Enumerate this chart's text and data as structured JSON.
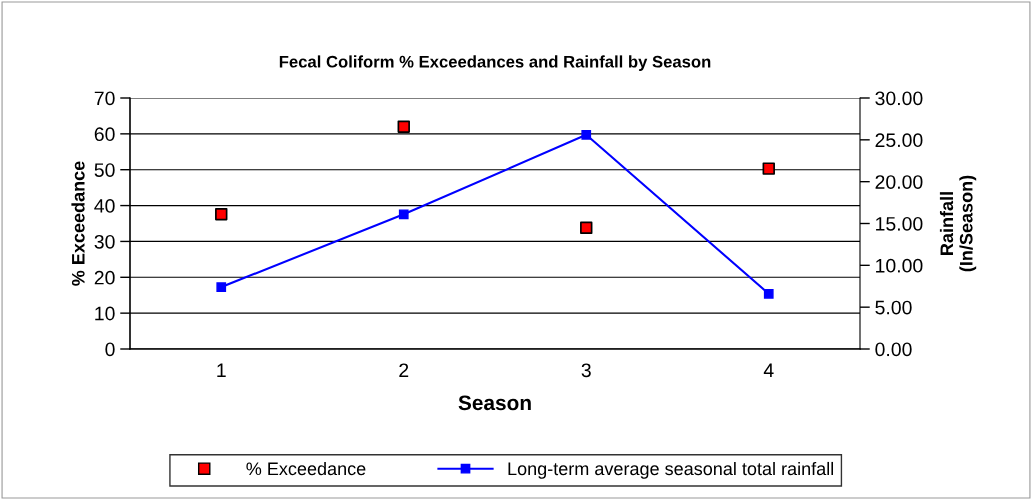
{
  "chart_data": {
    "type": "line",
    "title": "Fecal Coliform % Exceedances and Rainfall by Season",
    "xlabel": "Season",
    "ylabel": "% Exceedance",
    "y2label": "Rainfall\n(In/Season)",
    "categories": [
      "1",
      "2",
      "3",
      "4"
    ],
    "series": [
      {
        "name": "% Exceedance",
        "type": "scatter",
        "color": "#ff0000",
        "marker": "square",
        "values": [
          37.6,
          62.0,
          33.8,
          50.3
        ]
      },
      {
        "name": "Long-term average seasonal total rainfall",
        "axis": "y2",
        "color": "#0000ff",
        "marker": "square",
        "line_style": "solid",
        "values": [
          7.4,
          16.1,
          25.6,
          6.6
        ]
      }
    ],
    "ylim": [
      0,
      70
    ],
    "yticks": [
      0,
      10,
      20,
      30,
      40,
      50,
      60,
      70
    ],
    "y2lim": [
      0,
      30
    ],
    "y2ticks": [
      {
        "value": 0,
        "label": "0.00"
      },
      {
        "value": 5,
        "label": "5.00"
      },
      {
        "value": 10,
        "label": "10.00"
      },
      {
        "value": 15,
        "label": "15.00"
      },
      {
        "value": 20,
        "label": "20.00"
      },
      {
        "value": 25,
        "label": "25.00"
      },
      {
        "value": 30,
        "label": "30.00"
      }
    ],
    "grid": "y",
    "legend": "bottom"
  }
}
